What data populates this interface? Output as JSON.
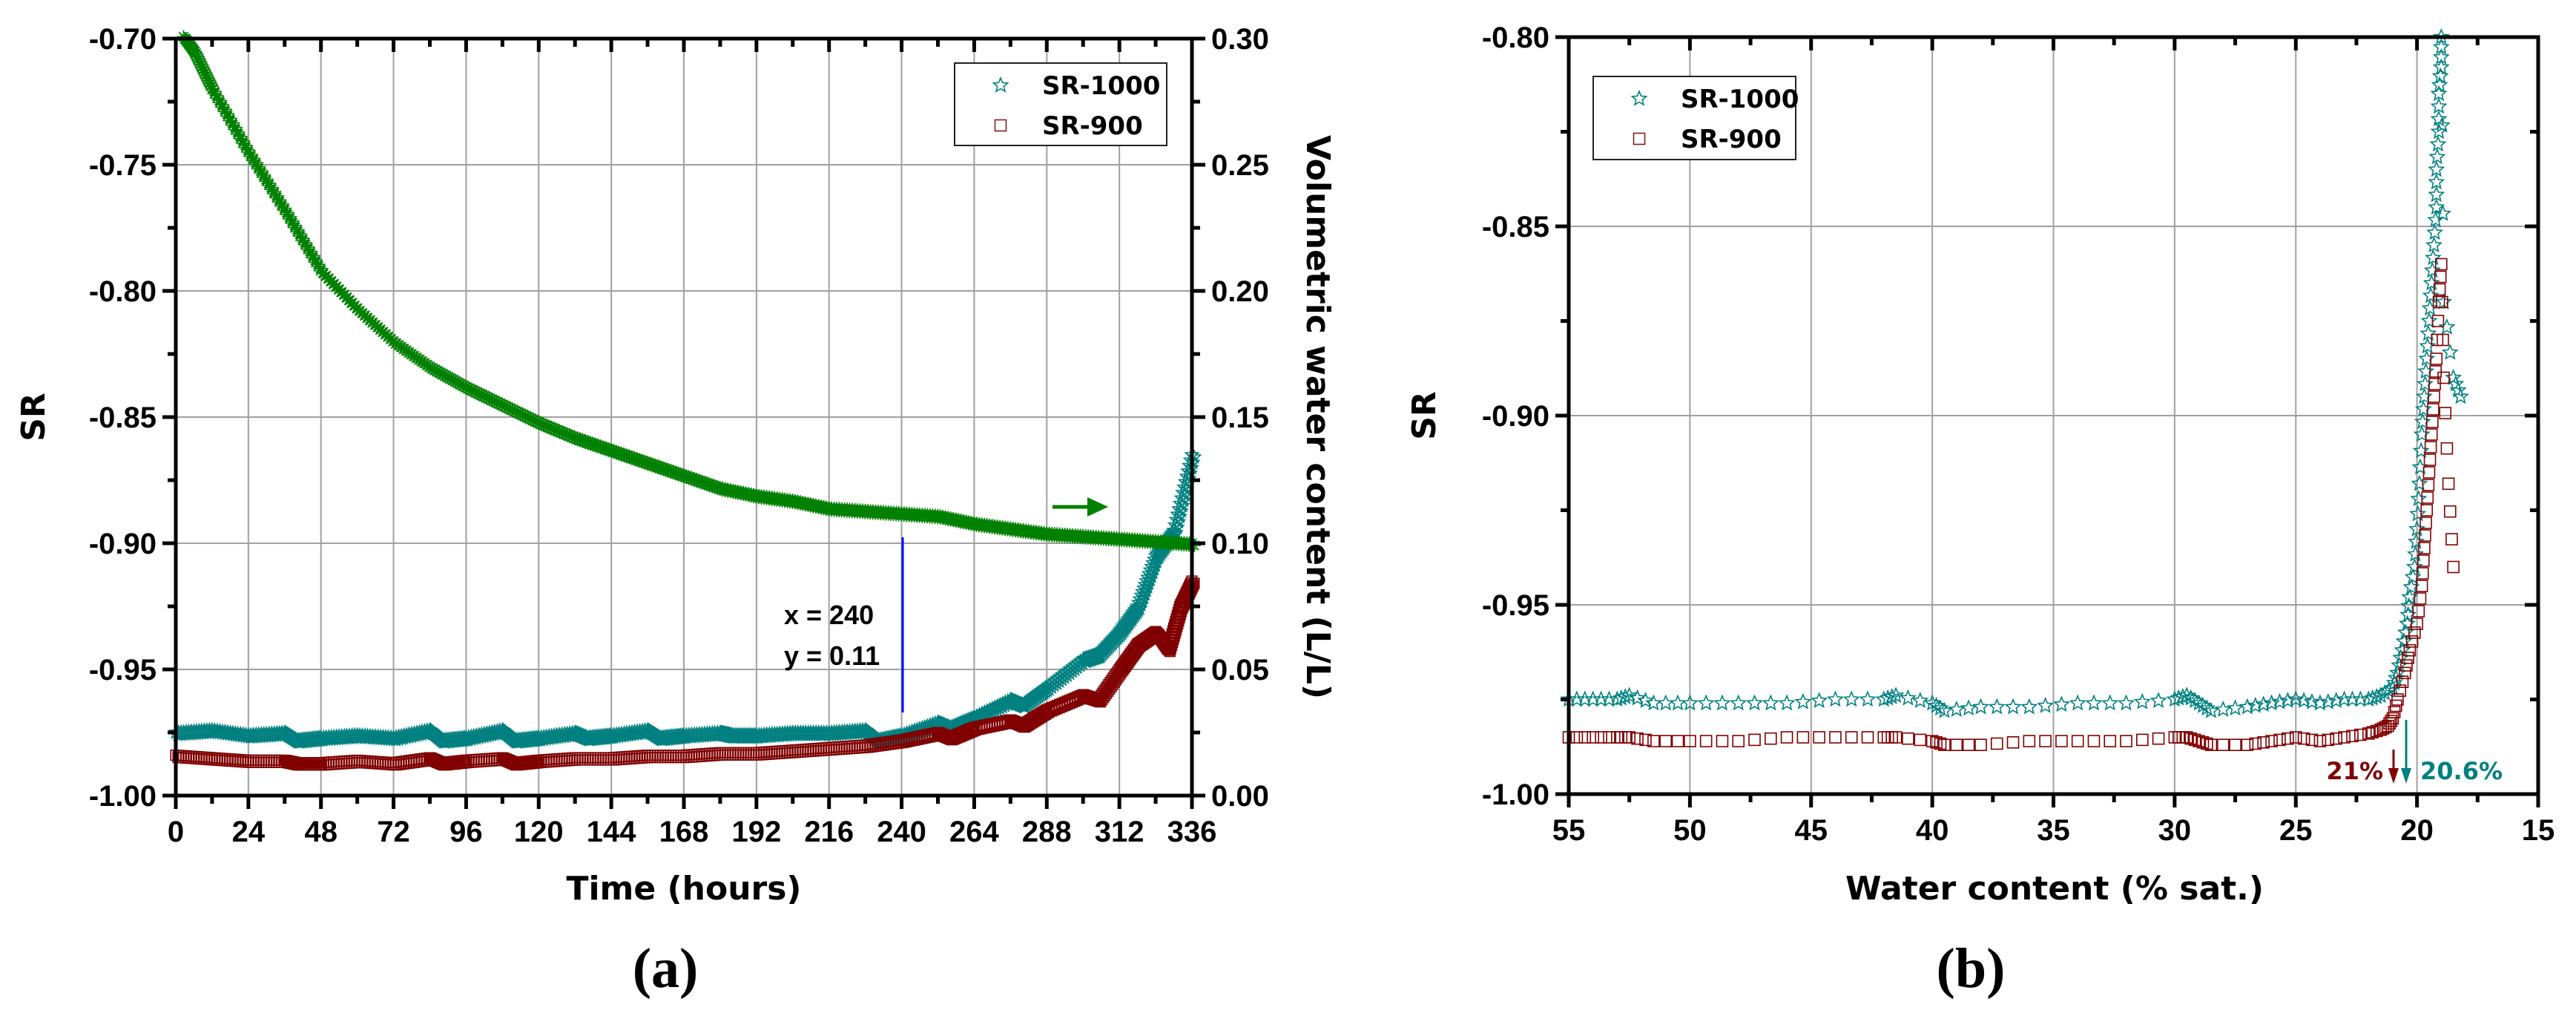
{
  "chart_data": [
    {
      "panel": "a",
      "type": "scatter",
      "caption": "(a)",
      "xlabel": "Time (hours)",
      "ylabel": "SR",
      "ylabel_right": "Volumetric water content (L/L)",
      "xlim": [
        0,
        336
      ],
      "ylim": [
        -1.0,
        -0.7
      ],
      "ylim_right": [
        0.0,
        0.3
      ],
      "xticks": [
        "0",
        "24",
        "48",
        "72",
        "96",
        "120",
        "144",
        "168",
        "192",
        "216",
        "240",
        "264",
        "288",
        "312",
        "336"
      ],
      "yticks": [
        "-1.00",
        "-0.95",
        "-0.90",
        "-0.85",
        "-0.80",
        "-0.75",
        "-0.70"
      ],
      "yticks_right": [
        "0.00",
        "0.05",
        "0.10",
        "0.15",
        "0.20",
        "0.25",
        "0.30"
      ],
      "grid": true,
      "legend": {
        "position": "upper right",
        "entries": [
          {
            "label": "SR-1000",
            "marker": "star",
            "color": "#008080"
          },
          {
            "label": "SR-900",
            "marker": "square",
            "color": "#8B1A1A"
          }
        ]
      },
      "annotations": [
        {
          "text": "x = 240",
          "x": 240,
          "y": 0.11
        },
        {
          "text": "y = 0.11"
        },
        {
          "type": "vline",
          "x": 240,
          "color": "#0000FF"
        },
        {
          "type": "arrow",
          "direction": "right",
          "color": "#008000",
          "note": "green curve uses right axis"
        }
      ],
      "series": [
        {
          "name": "SR-1000",
          "axis": "left",
          "marker": "star",
          "color": "#008080",
          "x": [
            0,
            12,
            24,
            36,
            40,
            48,
            60,
            72,
            84,
            88,
            96,
            108,
            112,
            120,
            132,
            136,
            144,
            156,
            160,
            168,
            180,
            184,
            192,
            204,
            216,
            228,
            232,
            240,
            252,
            256,
            264,
            276,
            280,
            288,
            300,
            305,
            312,
            318,
            324,
            330,
            336
          ],
          "y": [
            -0.975,
            -0.974,
            -0.976,
            -0.975,
            -0.978,
            -0.977,
            -0.976,
            -0.977,
            -0.974,
            -0.978,
            -0.977,
            -0.974,
            -0.978,
            -0.977,
            -0.975,
            -0.977,
            -0.976,
            -0.974,
            -0.977,
            -0.976,
            -0.975,
            -0.976,
            -0.976,
            -0.975,
            -0.975,
            -0.974,
            -0.978,
            -0.976,
            -0.971,
            -0.973,
            -0.969,
            -0.962,
            -0.964,
            -0.957,
            -0.946,
            -0.944,
            -0.935,
            -0.925,
            -0.905,
            -0.895,
            -0.865
          ]
        },
        {
          "name": "SR-900",
          "axis": "left",
          "marker": "square",
          "color": "#800000",
          "x": [
            0,
            12,
            24,
            36,
            40,
            48,
            60,
            72,
            84,
            88,
            96,
            108,
            112,
            120,
            132,
            144,
            156,
            168,
            180,
            192,
            204,
            216,
            228,
            240,
            252,
            256,
            264,
            276,
            280,
            288,
            300,
            305,
            312,
            318,
            324,
            328,
            332,
            336
          ],
          "y": [
            -0.984,
            -0.985,
            -0.986,
            -0.986,
            -0.987,
            -0.987,
            -0.986,
            -0.987,
            -0.985,
            -0.987,
            -0.986,
            -0.985,
            -0.987,
            -0.986,
            -0.985,
            -0.985,
            -0.984,
            -0.984,
            -0.983,
            -0.983,
            -0.982,
            -0.981,
            -0.98,
            -0.978,
            -0.975,
            -0.977,
            -0.973,
            -0.97,
            -0.972,
            -0.966,
            -0.96,
            -0.962,
            -0.95,
            -0.94,
            -0.935,
            -0.942,
            -0.925,
            -0.915
          ]
        },
        {
          "name": "Volumetric water content",
          "axis": "right",
          "marker": "asterisk",
          "color": "#008000",
          "x": [
            0,
            6,
            12,
            24,
            36,
            48,
            60,
            72,
            84,
            96,
            108,
            120,
            132,
            144,
            156,
            168,
            180,
            192,
            204,
            216,
            228,
            240,
            252,
            264,
            276,
            288,
            300,
            312,
            324,
            336
          ],
          "y": [
            0.305,
            0.295,
            0.28,
            0.255,
            0.232,
            0.208,
            0.193,
            0.18,
            0.17,
            0.162,
            0.155,
            0.148,
            0.142,
            0.137,
            0.132,
            0.127,
            0.122,
            0.119,
            0.117,
            0.114,
            0.113,
            0.112,
            0.111,
            0.108,
            0.106,
            0.104,
            0.103,
            0.102,
            0.101,
            0.1
          ]
        }
      ]
    },
    {
      "panel": "b",
      "type": "scatter",
      "caption": "(b)",
      "xlabel": "Water content (% sat.)",
      "ylabel": "SR",
      "xlim": [
        55,
        15
      ],
      "ylim": [
        -1.0,
        -0.8
      ],
      "xticks": [
        "55",
        "50",
        "45",
        "40",
        "35",
        "30",
        "25",
        "20",
        "15"
      ],
      "yticks": [
        "-1.00",
        "-0.95",
        "-0.90",
        "-0.85",
        "-0.80"
      ],
      "grid": true,
      "legend": {
        "position": "upper left",
        "entries": [
          {
            "label": "SR-1000",
            "marker": "star",
            "color": "#008080"
          },
          {
            "label": "SR-900",
            "marker": "square",
            "color": "#8B1A1A"
          }
        ]
      },
      "annotations": [
        {
          "text": "21%",
          "x": 21.0,
          "color": "#800000",
          "type": "down-arrow"
        },
        {
          "text": "20.6%",
          "x": 20.6,
          "color": "#008080",
          "type": "down-arrow"
        }
      ],
      "series": [
        {
          "name": "SR-1000",
          "marker": "star",
          "color": "#008080",
          "x": [
            55,
            54,
            53,
            52.5,
            51.5,
            50,
            48,
            46,
            44,
            42,
            41.5,
            40,
            39.5,
            38,
            36,
            34,
            32,
            30,
            29.5,
            29,
            28.5,
            27,
            26,
            25,
            24,
            23,
            22,
            21.5,
            21,
            20.8,
            20.6,
            20.4,
            20.3,
            20.1,
            20.0,
            19.9,
            19.8,
            19.7,
            19.6,
            19.5,
            19.4,
            19.3,
            19.2,
            19.2,
            19.1,
            19.1,
            19.0,
            19.0,
            18.9,
            18.5,
            18.2
          ],
          "y": [
            -0.975,
            -0.975,
            -0.975,
            -0.974,
            -0.976,
            -0.976,
            -0.976,
            -0.976,
            -0.975,
            -0.975,
            -0.974,
            -0.976,
            -0.978,
            -0.977,
            -0.977,
            -0.976,
            -0.976,
            -0.975,
            -0.974,
            -0.976,
            -0.978,
            -0.977,
            -0.976,
            -0.975,
            -0.976,
            -0.975,
            -0.975,
            -0.974,
            -0.972,
            -0.968,
            -0.962,
            -0.955,
            -0.948,
            -0.94,
            -0.93,
            -0.918,
            -0.905,
            -0.895,
            -0.885,
            -0.875,
            -0.865,
            -0.855,
            -0.845,
            -0.835,
            -0.825,
            -0.815,
            -0.808,
            -0.8,
            -0.87,
            -0.89,
            -0.895
          ]
        },
        {
          "name": "SR-900",
          "marker": "square",
          "color": "#800000",
          "x": [
            55,
            54,
            53,
            52.5,
            51.5,
            50,
            48,
            46,
            44,
            42,
            41.5,
            40,
            39.5,
            38,
            36,
            34,
            32,
            30,
            29.5,
            29,
            28.5,
            27,
            26,
            25,
            24,
            23,
            22,
            21.5,
            21.2,
            21.0,
            20.8,
            20.5,
            20.3,
            20.0,
            19.8,
            19.7,
            19.6,
            19.5,
            19.4,
            19.3,
            19.2,
            19.1,
            19.0,
            18.9,
            18.7,
            18.5
          ],
          "y": [
            -0.985,
            -0.985,
            -0.985,
            -0.985,
            -0.986,
            -0.986,
            -0.986,
            -0.985,
            -0.985,
            -0.985,
            -0.985,
            -0.986,
            -0.987,
            -0.987,
            -0.986,
            -0.986,
            -0.986,
            -0.985,
            -0.985,
            -0.986,
            -0.987,
            -0.987,
            -0.986,
            -0.985,
            -0.986,
            -0.985,
            -0.984,
            -0.983,
            -0.982,
            -0.98,
            -0.975,
            -0.968,
            -0.962,
            -0.955,
            -0.945,
            -0.935,
            -0.925,
            -0.915,
            -0.905,
            -0.895,
            -0.885,
            -0.87,
            -0.86,
            -0.89,
            -0.918,
            -0.94
          ]
        }
      ]
    }
  ]
}
